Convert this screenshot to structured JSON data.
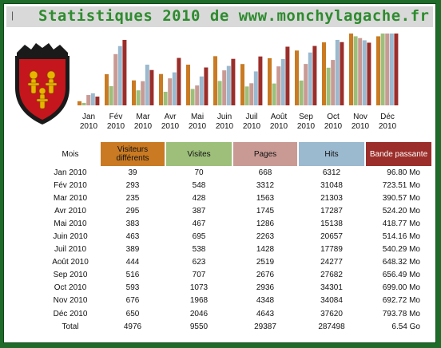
{
  "header": {
    "mark": "|",
    "title": "Statistiques 2010 de www.monchylagache.fr"
  },
  "colors": {
    "visiteurs": "#c97a22",
    "visites": "#9dbf7a",
    "pages": "#c99a94",
    "hits": "#9bb9cf",
    "bande": "#9b2e2a",
    "title": "#2e8b2e",
    "frame": "#1f6b2a"
  },
  "crest": {
    "icon": "coat-of-arms-icon"
  },
  "table": {
    "headers": [
      "Mois",
      "Visiteurs différents",
      "Visites",
      "Pages",
      "Hits",
      "Bande passante"
    ],
    "rows": [
      [
        "Jan 2010",
        "39",
        "70",
        "668",
        "6312",
        "96.80 Mo"
      ],
      [
        "Fév 2010",
        "293",
        "548",
        "3312",
        "31048",
        "723.51 Mo"
      ],
      [
        "Mar 2010",
        "235",
        "428",
        "1563",
        "21303",
        "390.57 Mo"
      ],
      [
        "Avr 2010",
        "295",
        "387",
        "1745",
        "17287",
        "524.20 Mo"
      ],
      [
        "Mai 2010",
        "383",
        "467",
        "1286",
        "15138",
        "418.77 Mo"
      ],
      [
        "Juin 2010",
        "463",
        "695",
        "2263",
        "20657",
        "514.16 Mo"
      ],
      [
        "Juil 2010",
        "389",
        "538",
        "1428",
        "17789",
        "540.29 Mo"
      ],
      [
        "Août 2010",
        "444",
        "623",
        "2519",
        "24277",
        "648.32 Mo"
      ],
      [
        "Sep 2010",
        "516",
        "707",
        "2676",
        "27682",
        "656.49 Mo"
      ],
      [
        "Oct 2010",
        "593",
        "1073",
        "2936",
        "34301",
        "699.00 Mo"
      ],
      [
        "Nov 2010",
        "676",
        "1968",
        "4348",
        "34084",
        "692.72 Mo"
      ],
      [
        "Déc 2010",
        "650",
        "2046",
        "4643",
        "37620",
        "793.78 Mo"
      ]
    ],
    "total": [
      "Total",
      "4976",
      "9550",
      "29387",
      "287498",
      "6.54 Go"
    ]
  },
  "chart_data": {
    "type": "bar",
    "categories": [
      [
        "Jan",
        "2010"
      ],
      [
        "Fév",
        "2010"
      ],
      [
        "Mar",
        "2010"
      ],
      [
        "Avr",
        "2010"
      ],
      [
        "Mai",
        "2010"
      ],
      [
        "Juin",
        "2010"
      ],
      [
        "Juil",
        "2010"
      ],
      [
        "Août",
        "2010"
      ],
      [
        "Sep",
        "2010"
      ],
      [
        "Oct",
        "2010"
      ],
      [
        "Nov",
        "2010"
      ],
      [
        "Déc",
        "2010"
      ]
    ],
    "series": [
      {
        "values": [
          39,
          293,
          235,
          295,
          383,
          463,
          389,
          444,
          516,
          593,
          676,
          650
        ],
        "max": 676,
        "color": "#c97a22"
      },
      {
        "values": [
          70,
          548,
          428,
          387,
          467,
          695,
          538,
          623,
          707,
          1073,
          1968,
          2046
        ],
        "max": 2046,
        "color": "#9dbf7a"
      },
      {
        "values": [
          668,
          3312,
          1563,
          1745,
          1286,
          2263,
          1428,
          2519,
          2676,
          2936,
          4348,
          4643
        ],
        "max": 4643,
        "color": "#c99a94"
      },
      {
        "values": [
          6312,
          31048,
          21303,
          17287,
          15138,
          20657,
          17789,
          24277,
          27682,
          34301,
          34084,
          37620
        ],
        "max": 37620,
        "color": "#9bb9cf"
      },
      {
        "values": [
          96.8,
          723.51,
          390.57,
          524.2,
          418.77,
          514.16,
          540.29,
          648.32,
          656.49,
          699.0,
          692.72,
          793.78
        ],
        "max": 793.78,
        "color": "#9b2e2a"
      }
    ],
    "scale": "each series normalized to its own maximum",
    "grid": false,
    "legend": "table below"
  }
}
